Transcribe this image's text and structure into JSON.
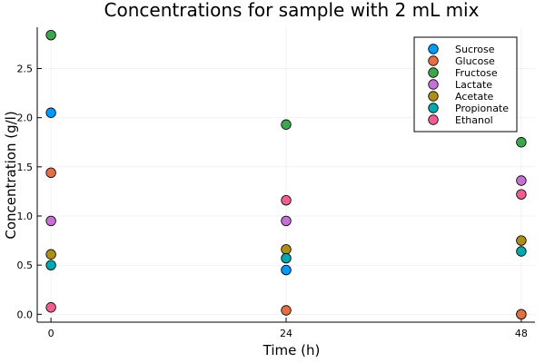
{
  "chart_data": {
    "type": "scatter",
    "title": "Concentrations for sample with 2 mL mix",
    "xlabel": "Time (h)",
    "ylabel": "Concentration (g/l)",
    "x": [
      0,
      24,
      48
    ],
    "x_ticks": [
      "0",
      "24",
      "48"
    ],
    "y_ticks": [
      "0.0",
      "0.5",
      "1.0",
      "1.5",
      "2.0",
      "2.5"
    ],
    "xlim": [
      -1.4,
      49.4
    ],
    "ylim": [
      -0.08,
      2.92
    ],
    "grid": true,
    "legend_position": "top-right",
    "series": [
      {
        "name": "Sucrose",
        "color": "#009AFA",
        "values": [
          2.05,
          0.45,
          0.0
        ]
      },
      {
        "name": "Glucose",
        "color": "#E36F47",
        "values": [
          1.44,
          0.04,
          0.0
        ]
      },
      {
        "name": "Fructose",
        "color": "#3EA44E",
        "values": [
          2.84,
          1.93,
          1.75
        ]
      },
      {
        "name": "Lactate",
        "color": "#C371D2",
        "values": [
          0.95,
          0.95,
          1.36
        ]
      },
      {
        "name": "Acetate",
        "color": "#AC8E18",
        "values": [
          0.61,
          0.66,
          0.75
        ]
      },
      {
        "name": "Propionate",
        "color": "#00A9AD",
        "values": [
          0.5,
          0.57,
          0.64
        ]
      },
      {
        "name": "Ethanol",
        "color": "#ED5E93",
        "values": [
          0.07,
          1.16,
          1.22
        ]
      }
    ]
  }
}
